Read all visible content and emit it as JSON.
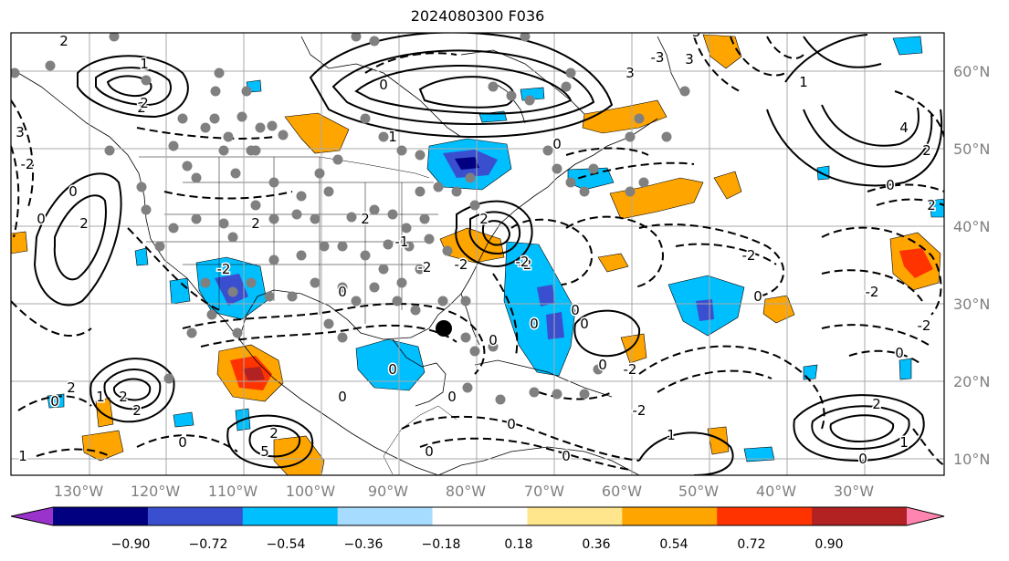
{
  "title": "2024080300 F036",
  "map": {
    "lon_labels": [
      "130°W",
      "120°W",
      "110°W",
      "100°W",
      "90°W",
      "80°W",
      "70°W",
      "60°W",
      "50°W",
      "40°W",
      "30°W"
    ],
    "lat_labels": [
      "60°N",
      "50°N",
      "40°N",
      "30°N",
      "20°N",
      "10°N"
    ],
    "label_color": "#7f7f7f",
    "gridline_color": "#a9a9a9"
  },
  "colorbar": {
    "tick_labels": [
      "−0.90",
      "−0.72",
      "−0.54",
      "−0.36",
      "−0.18",
      "0.18",
      "0.36",
      "0.54",
      "0.72",
      "0.90"
    ],
    "colors": [
      "#9933cc",
      "#000080",
      "#3a4fcf",
      "#00bfff",
      "#a6dcff",
      "#ffffff",
      "#ffe68c",
      "#ffa500",
      "#ff3300",
      "#b22222",
      "#ff85b0"
    ],
    "extend": "both"
  },
  "contour_labels": [
    "2",
    "-2",
    "0",
    "1",
    "-1",
    "3",
    "-3",
    "4",
    "5",
    "-5"
  ],
  "marker_color": "#808080",
  "center_marker_color": "#000000"
}
